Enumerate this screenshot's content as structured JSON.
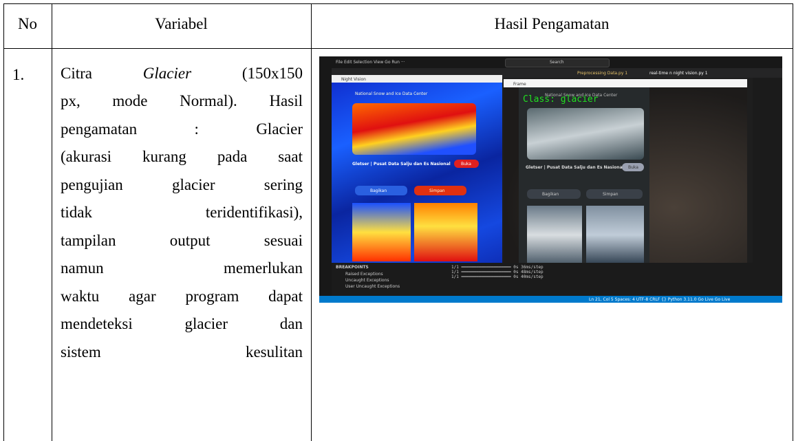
{
  "table": {
    "header": [
      "No",
      "Variabel",
      "Hasil Pengamatan"
    ],
    "rows": [
      {
        "no": "1.",
        "first_line": [
          "Citra",
          "Glacier",
          "(150x150"
        ],
        "lines": [
          "px, mode Normal). Hasil",
          "pengamatan : Glacier",
          "(akurasi kurang pada saat",
          "pengujian glacier sering",
          "tidak teridentifikasi),",
          "tampilan output sesuai",
          "namun memerlukan",
          "waktu agar program dapat",
          "mendeteksi glacier dan",
          "sistem kesulitan"
        ]
      }
    ]
  },
  "screenshot": {
    "menu": "File  Edit  Selection  View  Go  Run  ···",
    "search": "Search",
    "tabs": [
      "Preprocessing Data.py 1",
      "real-time n night vision.py 1"
    ],
    "night_window": "Night Vision",
    "frame_window": "Frame",
    "class_label": "Class: glacier",
    "site": "National Snow and Ice Data Center",
    "heading": "Gletser | Pusat Data Salju dan Es Nasional",
    "open": "Buka",
    "share": "Bagikan",
    "save": "Simpan",
    "breakpoints": "BREAKPOINTS",
    "exceptions": [
      "Raised Exceptions",
      "Uncaught Exceptions",
      "User Uncaught Exceptions"
    ],
    "terminal": [
      "1/1 ━━━━━━━━━━━━━━━━━━━━ 0s 36ms/step",
      "1/1 ━━━━━━━━━━━━━━━━━━━━ 0s 48ms/step",
      "1/1 ━━━━━━━━━━━━━━━━━━━━ 0s 40ms/step"
    ],
    "status": "Ln 21, Col 5   Spaces: 4   UTF-8   CRLF   {} Python   3.11.0   Go Live   Go Live"
  }
}
